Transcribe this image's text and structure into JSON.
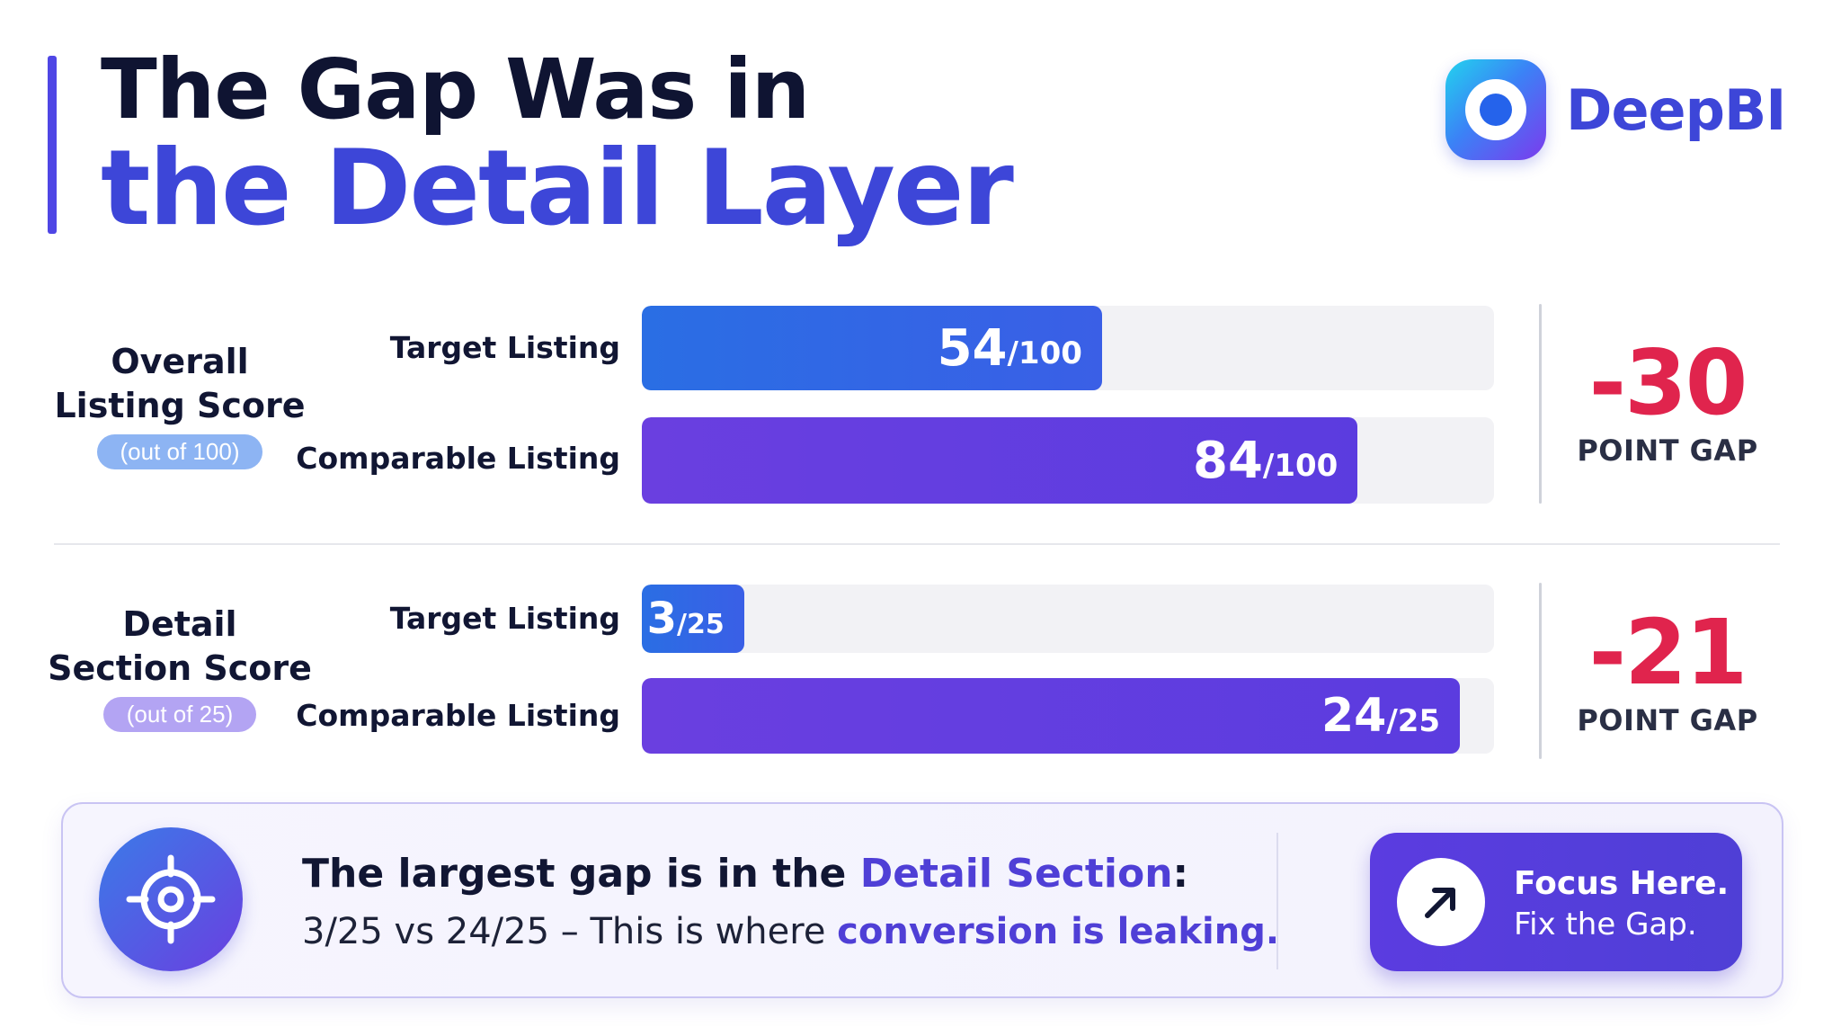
{
  "header": {
    "title_line1": "The Gap Was in",
    "title_line2": "the Detail Layer",
    "brand_name": "DeepBI",
    "brand_icon": "deepbi-logo-icon"
  },
  "colors": {
    "target_bar": "#2a6ee4",
    "comparable_bar": "#6a3fe0",
    "gap_text": "#e0244d",
    "accent": "#3d46d8"
  },
  "chart_data": [
    {
      "type": "bar",
      "orientation": "horizontal",
      "title": "Overall Listing Score",
      "scale_label": "(out of 100)",
      "max": 100,
      "categories": [
        "Target Listing",
        "Comparable Listing"
      ],
      "values": [
        54,
        84
      ],
      "value_labels": [
        "54",
        "84"
      ],
      "unit_suffix": "/100",
      "gap": {
        "value": "-30",
        "label": "POINT GAP"
      }
    },
    {
      "type": "bar",
      "orientation": "horizontal",
      "title": "Detail Section Score",
      "scale_label": "(out of 25)",
      "max": 25,
      "categories": [
        "Target Listing",
        "Comparable Listing"
      ],
      "values": [
        3,
        24
      ],
      "value_labels": [
        "3",
        "24"
      ],
      "unit_suffix": "/25",
      "gap": {
        "value": "-21",
        "label": "POINT GAP"
      }
    }
  ],
  "sections": [
    {
      "name_line1": "Overall",
      "name_line2": "Listing Score"
    },
    {
      "name_line1": "Detail",
      "name_line2": "Section Score"
    }
  ],
  "callout": {
    "icon": "target-icon",
    "line1_prefix": "The largest gap is in the ",
    "line1_highlight": "Detail Section",
    "line1_suffix": ":",
    "line2_prefix": "3/25 vs 24/25 – This is where ",
    "line2_highlight": "conversion is leaking.",
    "button_icon": "arrow-up-right-icon",
    "button_line1": "Focus Here.",
    "button_line2": "Fix the Gap."
  }
}
